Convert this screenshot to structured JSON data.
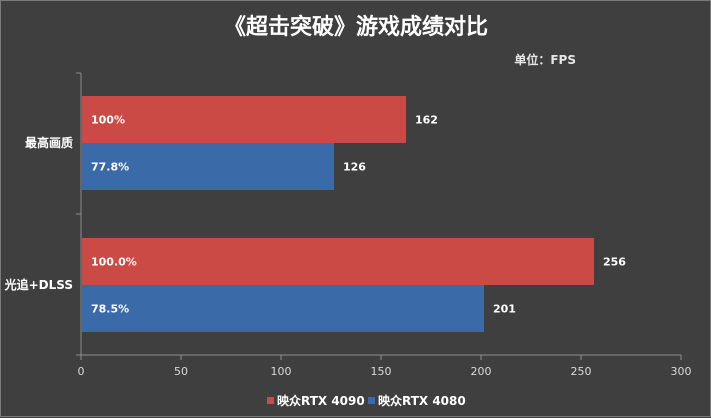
{
  "chart_data": {
    "type": "bar",
    "orientation": "horizontal",
    "title": "《超击突破》游戏成绩对比",
    "unit_label": "单位：FPS",
    "categories": [
      "最高画质",
      "光追+DLSS"
    ],
    "series": [
      {
        "name": "映众RTX 4090",
        "color": "#cc4a46",
        "values": [
          162,
          256
        ],
        "percent_labels": [
          "100%",
          "100.0%"
        ]
      },
      {
        "name": "映众RTX 4080",
        "color": "#3b6aa8",
        "values": [
          126,
          201
        ],
        "percent_labels": [
          "77.8%",
          "78.5%"
        ]
      }
    ],
    "xlim": [
      0,
      300
    ],
    "xticks": [
      0,
      50,
      100,
      150,
      200,
      250,
      300
    ],
    "grid": false,
    "legend_position": "bottom-center"
  }
}
